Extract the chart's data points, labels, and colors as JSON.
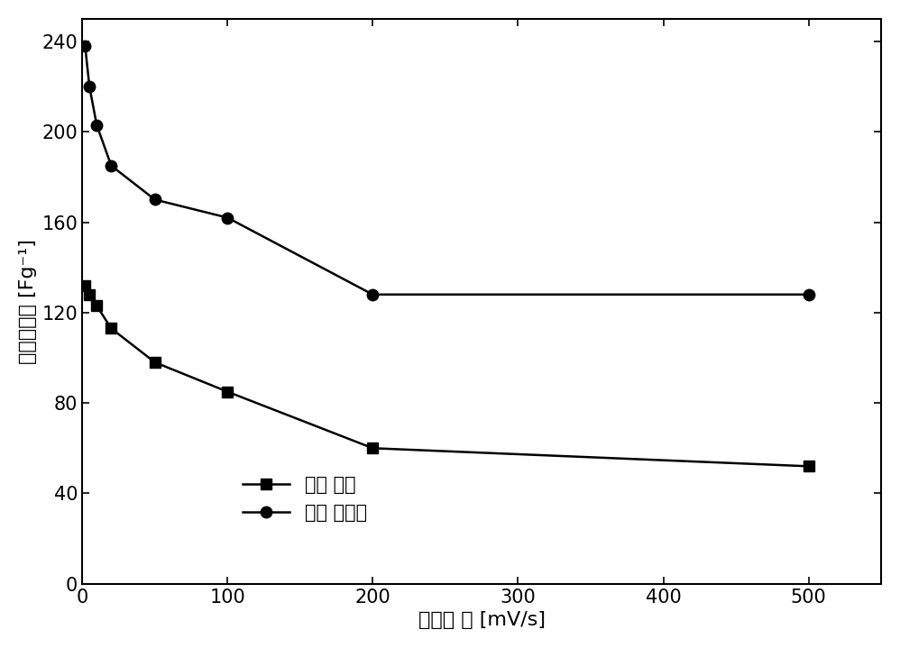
{
  "series1_label": "原始 样品",
  "series2_label": "洸泡 后样品",
  "series1_x": [
    2,
    5,
    10,
    20,
    50,
    100,
    200,
    500
  ],
  "series1_y": [
    132,
    128,
    123,
    113,
    98,
    85,
    60,
    52
  ],
  "series2_x": [
    2,
    5,
    10,
    20,
    50,
    100,
    200,
    500
  ],
  "series2_y": [
    238,
    220,
    203,
    185,
    170,
    162,
    128,
    128
  ],
  "xlabel": "扫描速 率 [mV/s]",
  "ylabel": "质量比电容 [Fg⁻¹]",
  "xlim": [
    0,
    550
  ],
  "ylim": [
    0,
    250
  ],
  "xticks": [
    0,
    100,
    200,
    300,
    400,
    500
  ],
  "yticks": [
    0,
    40,
    80,
    120,
    160,
    200,
    240
  ],
  "line_color": "#000000",
  "marker1": "s",
  "marker2": "o",
  "markersize": 9,
  "linewidth": 1.8,
  "xlabel_fontsize": 16,
  "ylabel_fontsize": 16,
  "tick_fontsize": 15,
  "legend_fontsize": 15
}
